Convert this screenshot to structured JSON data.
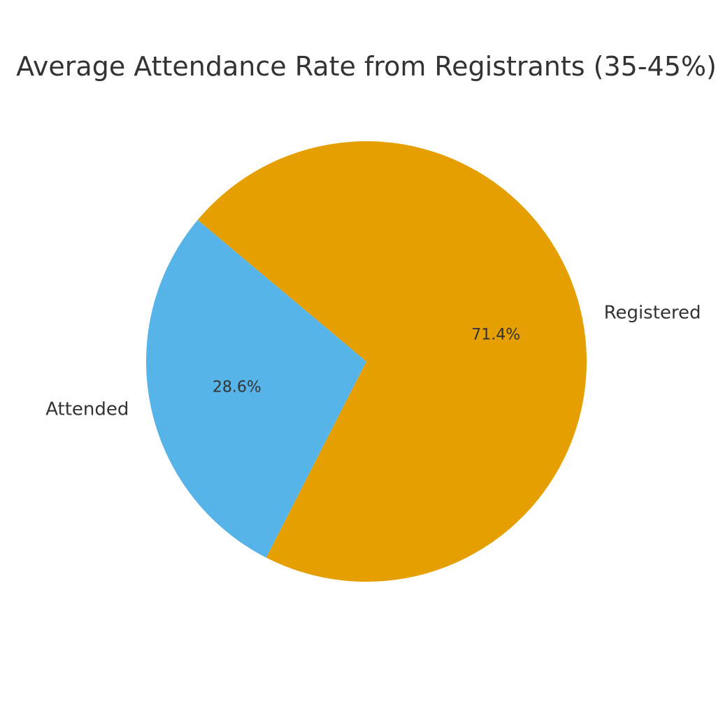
{
  "chart_data": {
    "type": "pie",
    "title": "Average Attendance Rate from Registrants (35-45%)",
    "slices": [
      {
        "label": "Attended",
        "value": 28.6,
        "pct_label": "28.6%",
        "color": "#56B4E9"
      },
      {
        "label": "Registered",
        "value": 71.4,
        "pct_label": "71.4%",
        "color": "#E69F00"
      }
    ],
    "start_angle_deg": 140,
    "direction": "counterclockwise"
  }
}
